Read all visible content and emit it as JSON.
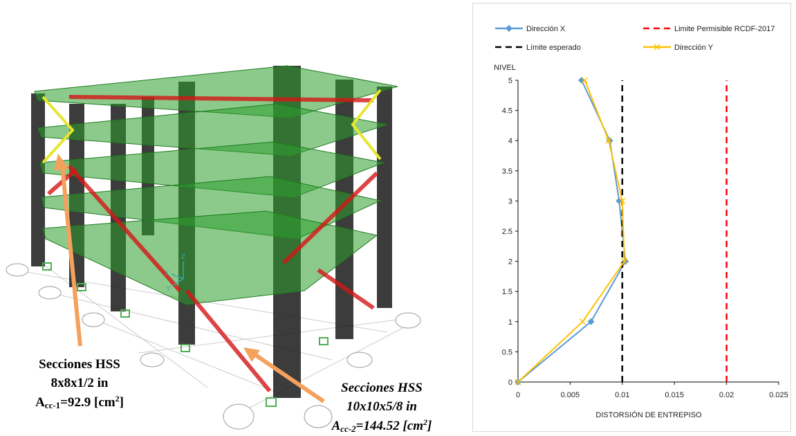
{
  "figure": {
    "axis_labels": [
      "Z",
      "X",
      "Y"
    ],
    "annotations": [
      {
        "lines": [
          [
            "Secciones HSS"
          ],
          [
            "8x8x1/2 in"
          ],
          [
            "A",
            "cc-1",
            "=92.9 [cm",
            "2",
            "]"
          ]
        ]
      },
      {
        "lines": [
          [
            "Secciones HSS"
          ],
          [
            "10x10x5/8 in"
          ],
          [
            "A",
            "cc-2",
            "=144.52 [cm",
            "2",
            "]"
          ]
        ]
      }
    ]
  },
  "chart_data": {
    "type": "line",
    "x_label": "DISTORSIÓN DE ENTREPISO",
    "y_label": "NIVEL",
    "xlim": [
      0,
      0.025
    ],
    "xticks": [
      0,
      0.005,
      0.01,
      0.015,
      0.02,
      0.025
    ],
    "ylim": [
      0,
      5
    ],
    "yticks": [
      0,
      0.5,
      1,
      1.5,
      2,
      2.5,
      3,
      3.5,
      4,
      4.5,
      5
    ],
    "grid": false,
    "legend": "top",
    "series": [
      {
        "name": "Dirección X",
        "color": "#5b9bd5",
        "marker": "diamond",
        "dash": false,
        "x": [
          0,
          0.007,
          0.0103,
          0.0097,
          0.0088,
          0.0061
        ],
        "values": [
          0,
          1,
          2,
          3,
          4,
          5
        ]
      },
      {
        "name": "Limite Permisible RCDF-2017",
        "color": "#ff0000",
        "marker": "none",
        "dash": true,
        "x": [
          0.02,
          0.02
        ],
        "values": [
          0,
          5
        ]
      },
      {
        "name": "Límite esperado",
        "color": "#000000",
        "marker": "none",
        "dash": true,
        "x": [
          0.01,
          0.01
        ],
        "values": [
          0,
          5
        ]
      },
      {
        "name": "Dirección Y",
        "color": "#ffc000",
        "marker": "x",
        "dash": false,
        "x": [
          0,
          0.0062,
          0.0102,
          0.01,
          0.0087,
          0.0064
        ],
        "values": [
          0,
          1,
          2,
          3,
          4,
          5
        ]
      }
    ]
  }
}
